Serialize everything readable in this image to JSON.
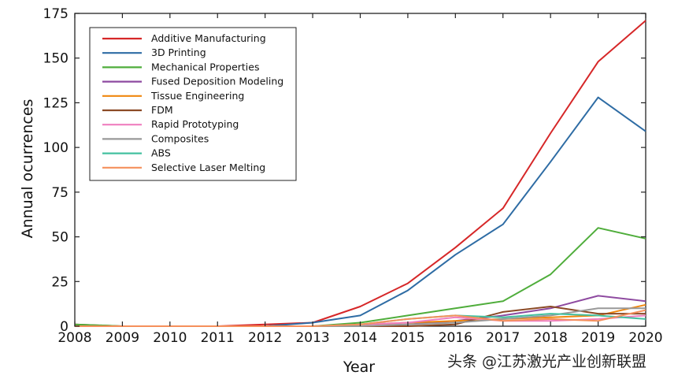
{
  "chart_data": {
    "type": "line",
    "title": "",
    "xlabel": "Year",
    "ylabel": "Annual ocurrences",
    "x": [
      2008,
      2009,
      2010,
      2011,
      2012,
      2013,
      2014,
      2015,
      2016,
      2017,
      2018,
      2019,
      2020
    ],
    "xlim": [
      2008,
      2020
    ],
    "ylim": [
      0,
      175
    ],
    "yticks": [
      0,
      25,
      50,
      75,
      100,
      125,
      150,
      175
    ],
    "grid": false,
    "legend_position": "top-left",
    "series": [
      {
        "name": "Additive Manufacturing",
        "color": "#d62728",
        "values": [
          1,
          0,
          0,
          0,
          1,
          2,
          11,
          24,
          44,
          66,
          108,
          148,
          171
        ]
      },
      {
        "name": "3D Printing",
        "color": "#2e6ca4",
        "values": [
          0,
          0,
          0,
          0,
          0,
          2,
          6,
          20,
          40,
          57,
          92,
          128,
          109
        ]
      },
      {
        "name": "Mechanical Properties",
        "color": "#4fad3b",
        "values": [
          1,
          0,
          0,
          0,
          0,
          0,
          2,
          6,
          10,
          14,
          29,
          55,
          49
        ]
      },
      {
        "name": "Fused Deposition Modeling",
        "color": "#8e4aa0",
        "values": [
          0,
          0,
          0,
          0,
          0,
          0,
          0,
          1,
          3,
          6,
          10,
          17,
          14
        ]
      },
      {
        "name": "Tissue Engineering",
        "color": "#f0870e",
        "values": [
          0,
          0,
          0,
          0,
          0,
          0,
          1,
          2,
          3,
          4,
          5,
          6,
          12
        ]
      },
      {
        "name": "FDM",
        "color": "#8b4a26",
        "values": [
          0,
          0,
          0,
          0,
          0,
          0,
          0,
          0,
          1,
          8,
          11,
          7,
          7
        ]
      },
      {
        "name": "Rapid Prototyping",
        "color": "#ef7fbf",
        "values": [
          0,
          0,
          0,
          0,
          0,
          0,
          1,
          2,
          5,
          3,
          3,
          4,
          6
        ]
      },
      {
        "name": "Composites",
        "color": "#999999",
        "values": [
          0,
          0,
          0,
          0,
          0,
          0,
          0,
          1,
          2,
          4,
          6,
          10,
          10
        ]
      },
      {
        "name": "ABS",
        "color": "#44c0a0",
        "values": [
          0,
          0,
          0,
          0,
          0,
          0,
          1,
          4,
          6,
          5,
          7,
          6,
          4
        ]
      },
      {
        "name": "Selective Laser Melting",
        "color": "#f5905c",
        "values": [
          0,
          0,
          0,
          0,
          0,
          0,
          1,
          4,
          6,
          3,
          4,
          3,
          9
        ]
      }
    ]
  },
  "watermark": "头条 @江苏激光产业创新联盟"
}
